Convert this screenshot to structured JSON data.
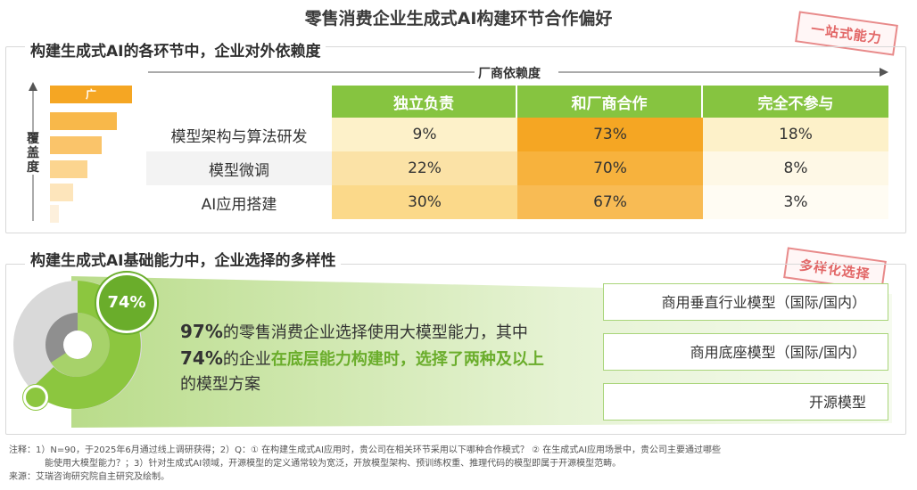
{
  "title": "零售消费企业生成式AI构建环节合作偏好",
  "stamps": {
    "top": "一站式能力",
    "bottom": "多样化选择"
  },
  "section1": {
    "title": "构建生成式AI的各环节中，企业对外依赖度",
    "dependency_label": "厂商依赖度",
    "coverage_label": "覆盖度",
    "pyramid_top_label": "广"
  },
  "section2": {
    "title": "构建生成式AI基础能力中，企业选择的多样性",
    "donut_label": "74%",
    "text": {
      "line1_highlight": "97%",
      "line1_rest": "的零售消费企业选择使用大模型能力，其中",
      "line2_highlight": "74%",
      "line2_mid": "的企业",
      "line2_green": "在底层能力构建时，选择了两种及以上",
      "line3": "的模型方案"
    },
    "options": [
      "商用垂直行业模型（国际/国内）",
      "商用底座模型（国际/国内）",
      "开源模型"
    ]
  },
  "chart_data": {
    "type": "table",
    "columns": [
      "独立负责",
      "和厂商合作",
      "完全不参与"
    ],
    "rows": [
      {
        "label": "模型架构与算法研发",
        "values": [
          "9%",
          "73%",
          "18%"
        ]
      },
      {
        "label": "模型微调",
        "values": [
          "22%",
          "70%",
          "8%"
        ]
      },
      {
        "label": "AI应用搭建",
        "values": [
          "30%",
          "67%",
          "3%"
        ]
      }
    ]
  },
  "footnotes": {
    "line1": "注释：1）N=90，于2025年6月通过线上调研获得；2）Q：① 在构建生成式AI应用时，贵公司在相关环节采用以下哪种合作模式？ ② 在生成式AI应用场景中，贵公司主要通过哪些",
    "line2": "能使用大模型能力？；3）针对生成式AI领域，开源模型的定义通常较为宽泛，开放模型架构、预训练权重、推理代码的模型即属于开源模型范畴。",
    "line3": "来源：艾瑞咨询研究院自主研究及绘制。"
  },
  "colors": {
    "green": "#86c440",
    "orange": "#f5a623",
    "light_yellow": "#fdf1c9",
    "mid_yellow": "#fbd98a"
  }
}
